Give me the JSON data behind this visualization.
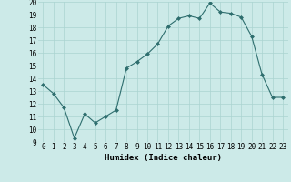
{
  "x": [
    0,
    1,
    2,
    3,
    4,
    5,
    6,
    7,
    8,
    9,
    10,
    11,
    12,
    13,
    14,
    15,
    16,
    17,
    18,
    19,
    20,
    21,
    22,
    23
  ],
  "y": [
    13.5,
    12.8,
    11.7,
    9.3,
    11.2,
    10.5,
    11.0,
    11.5,
    14.8,
    15.3,
    15.9,
    16.7,
    18.1,
    18.7,
    18.9,
    18.7,
    19.9,
    19.2,
    19.1,
    18.8,
    17.3,
    14.3,
    12.5,
    12.5
  ],
  "xlabel": "Humidex (Indice chaleur)",
  "ylim": [
    9,
    20
  ],
  "xlim": [
    -0.5,
    23.5
  ],
  "yticks": [
    9,
    10,
    11,
    12,
    13,
    14,
    15,
    16,
    17,
    18,
    19,
    20
  ],
  "xticks": [
    0,
    1,
    2,
    3,
    4,
    5,
    6,
    7,
    8,
    9,
    10,
    11,
    12,
    13,
    14,
    15,
    16,
    17,
    18,
    19,
    20,
    21,
    22,
    23
  ],
  "line_color": "#2e6e6e",
  "marker": "D",
  "marker_size": 2.0,
  "bg_color": "#cceae8",
  "grid_color": "#aad4d1",
  "label_fontsize": 6.5,
  "tick_fontsize": 5.5
}
